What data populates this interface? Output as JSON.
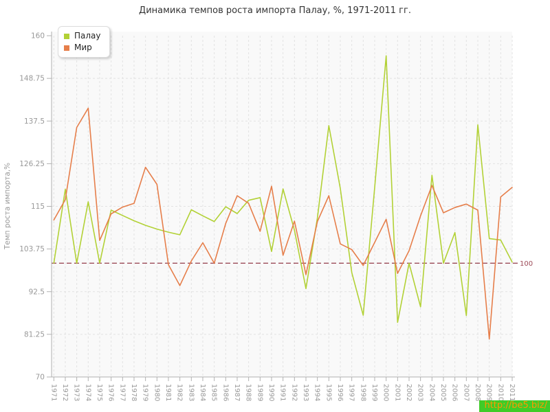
{
  "title": "Динамика темпов роста импорта Палау, %, 1971-2011 гг.",
  "y_axis_title": "Темп роста импорта,%",
  "baseline": {
    "value": 100,
    "label": "100",
    "color": "#9c4a57"
  },
  "watermark": {
    "text": "http://be5.biz/",
    "bg_color": "#3fcc28",
    "text_color": "#ff9800"
  },
  "colors": {
    "palau": "#b2d135",
    "world": "#e67e4a",
    "grid": "#e2e2e2",
    "axis": "#b0b0b0",
    "tick_label": "#999999",
    "plot_bg": "#f9f9f9",
    "title_text": "#333333"
  },
  "chart_data": {
    "type": "line",
    "title": "Динамика темпов роста импорта Палау, %, 1971-2011 гг.",
    "xlabel": "",
    "ylabel": "Темп роста импорта,%",
    "ylim": [
      70,
      160
    ],
    "yticks": [
      70,
      81.25,
      92.5,
      103.75,
      115,
      126.25,
      137.5,
      148.75,
      160
    ],
    "grid": true,
    "legend_position": "top-left",
    "baseline": 100,
    "categories": [
      1971,
      1972,
      1973,
      1974,
      1975,
      1976,
      1977,
      1978,
      1979,
      1980,
      1981,
      1982,
      1983,
      1984,
      1985,
      1986,
      1987,
      1988,
      1989,
      1990,
      1991,
      1992,
      1993,
      1994,
      1995,
      1996,
      1997,
      1998,
      1999,
      2000,
      2001,
      2002,
      2003,
      2004,
      2005,
      2006,
      2007,
      2008,
      2009,
      2010,
      2011
    ],
    "series": [
      {
        "name": "Палау",
        "color": "#b2d135",
        "values": [
          100,
          119.5,
          100,
          116.2,
          100,
          114,
          112.6,
          111.2,
          110,
          109,
          108.2,
          107.5,
          114.1,
          112.5,
          111,
          114.9,
          113.1,
          116.6,
          117.3,
          103.1,
          119.6,
          108.7,
          93.3,
          112,
          136.3,
          119.7,
          97.5,
          86.3,
          120,
          154.7,
          84.4,
          100,
          88.5,
          123.2,
          100,
          108.1,
          86.2,
          136.5,
          106.5,
          106.1,
          100.3
        ]
      },
      {
        "name": "Мир",
        "color": "#e67e4a",
        "values": [
          111.4,
          116.8,
          135.8,
          140.9,
          106,
          113,
          114.8,
          115.8,
          125.3,
          120.8,
          99.6,
          94.1,
          100.6,
          105.4,
          100,
          110.5,
          117.8,
          115.8,
          108.4,
          120.3,
          102.1,
          111.1,
          97,
          111,
          117.8,
          105.1,
          103.6,
          99.4,
          105.5,
          111.6,
          97.3,
          103.3,
          112.5,
          120.5,
          113.3,
          114.7,
          115.6,
          114,
          80,
          117.5,
          120
        ]
      }
    ]
  }
}
